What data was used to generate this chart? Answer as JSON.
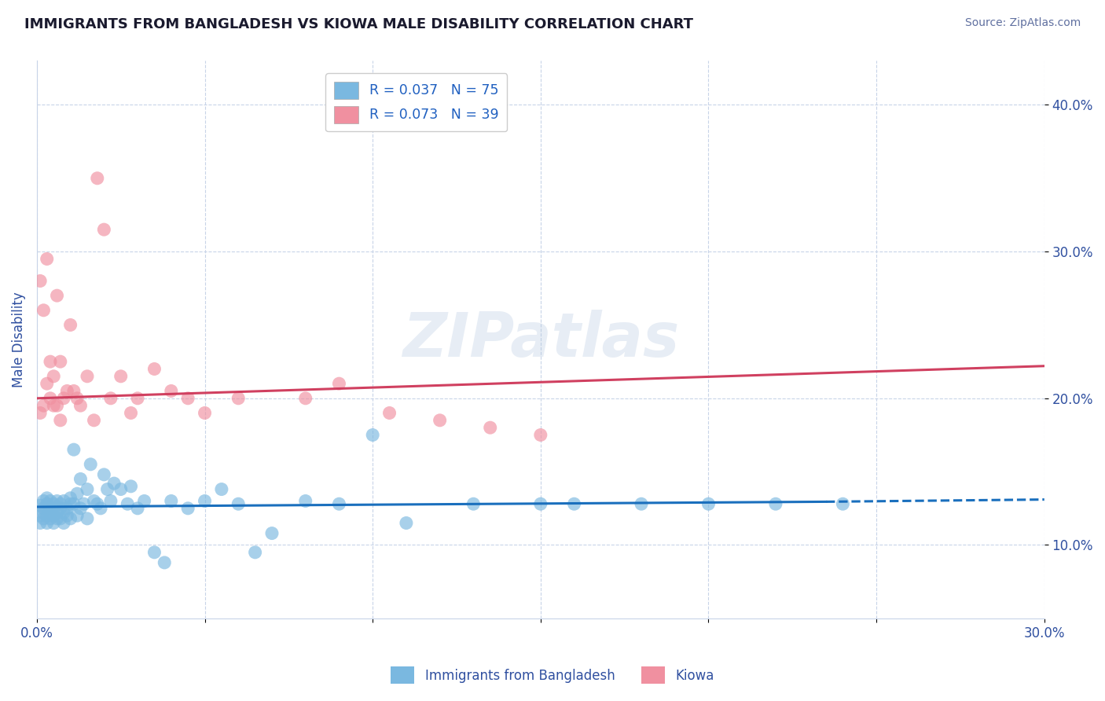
{
  "title": "IMMIGRANTS FROM BANGLADESH VS KIOWA MALE DISABILITY CORRELATION CHART",
  "source": "Source: ZipAtlas.com",
  "ylabel": "Male Disability",
  "xlim": [
    0.0,
    0.3
  ],
  "ylim": [
    0.05,
    0.43
  ],
  "y_ticks": [
    0.1,
    0.2,
    0.3,
    0.4
  ],
  "y_tick_labels": [
    "10.0%",
    "20.0%",
    "30.0%",
    "40.0%"
  ],
  "legend_labels_bottom": [
    "Immigrants from Bangladesh",
    "Kiowa"
  ],
  "watermark": "ZIPatlas",
  "blue_scatter_x": [
    0.001,
    0.001,
    0.001,
    0.002,
    0.002,
    0.002,
    0.002,
    0.003,
    0.003,
    0.003,
    0.003,
    0.004,
    0.004,
    0.004,
    0.004,
    0.005,
    0.005,
    0.005,
    0.005,
    0.006,
    0.006,
    0.006,
    0.007,
    0.007,
    0.007,
    0.008,
    0.008,
    0.008,
    0.009,
    0.009,
    0.01,
    0.01,
    0.01,
    0.011,
    0.011,
    0.012,
    0.012,
    0.013,
    0.013,
    0.014,
    0.015,
    0.015,
    0.016,
    0.017,
    0.018,
    0.019,
    0.02,
    0.021,
    0.022,
    0.023,
    0.025,
    0.027,
    0.028,
    0.03,
    0.032,
    0.035,
    0.038,
    0.04,
    0.045,
    0.05,
    0.055,
    0.06,
    0.065,
    0.07,
    0.08,
    0.09,
    0.1,
    0.11,
    0.13,
    0.15,
    0.16,
    0.18,
    0.2,
    0.22,
    0.24
  ],
  "blue_scatter_y": [
    0.127,
    0.12,
    0.115,
    0.125,
    0.118,
    0.122,
    0.13,
    0.128,
    0.115,
    0.12,
    0.132,
    0.125,
    0.118,
    0.122,
    0.13,
    0.128,
    0.115,
    0.12,
    0.125,
    0.118,
    0.13,
    0.122,
    0.125,
    0.128,
    0.118,
    0.122,
    0.13,
    0.115,
    0.125,
    0.12,
    0.128,
    0.132,
    0.118,
    0.165,
    0.128,
    0.135,
    0.12,
    0.145,
    0.125,
    0.128,
    0.138,
    0.118,
    0.155,
    0.13,
    0.128,
    0.125,
    0.148,
    0.138,
    0.13,
    0.142,
    0.138,
    0.128,
    0.14,
    0.125,
    0.13,
    0.095,
    0.088,
    0.13,
    0.125,
    0.13,
    0.138,
    0.128,
    0.095,
    0.108,
    0.13,
    0.128,
    0.175,
    0.115,
    0.128,
    0.128,
    0.128,
    0.128,
    0.128,
    0.128,
    0.128
  ],
  "pink_scatter_x": [
    0.001,
    0.001,
    0.002,
    0.002,
    0.003,
    0.003,
    0.004,
    0.004,
    0.005,
    0.005,
    0.006,
    0.006,
    0.007,
    0.007,
    0.008,
    0.009,
    0.01,
    0.011,
    0.012,
    0.013,
    0.015,
    0.017,
    0.018,
    0.02,
    0.022,
    0.025,
    0.028,
    0.03,
    0.035,
    0.04,
    0.045,
    0.05,
    0.06,
    0.08,
    0.09,
    0.105,
    0.12,
    0.135,
    0.15
  ],
  "pink_scatter_y": [
    0.19,
    0.28,
    0.26,
    0.195,
    0.295,
    0.21,
    0.2,
    0.225,
    0.215,
    0.195,
    0.27,
    0.195,
    0.185,
    0.225,
    0.2,
    0.205,
    0.25,
    0.205,
    0.2,
    0.195,
    0.215,
    0.185,
    0.35,
    0.315,
    0.2,
    0.215,
    0.19,
    0.2,
    0.22,
    0.205,
    0.2,
    0.19,
    0.2,
    0.2,
    0.21,
    0.19,
    0.185,
    0.18,
    0.175
  ],
  "blue_scatter_color": "#7ab8e0",
  "pink_scatter_color": "#f090a0",
  "blue_line_color": "#1a6fbd",
  "pink_line_color": "#d04060",
  "blue_line_x0": 0.0,
  "blue_line_x1": 0.235,
  "blue_line_x2": 0.3,
  "blue_line_y0": 0.126,
  "blue_line_y1": 0.1295,
  "blue_line_y2": 0.131,
  "pink_line_x0": 0.0,
  "pink_line_x1": 0.3,
  "pink_line_y0": 0.2,
  "pink_line_y1": 0.222,
  "background_color": "#ffffff",
  "grid_color": "#c8d4e8",
  "title_color": "#1a1a2e",
  "axis_label_color": "#3050a0",
  "tick_label_color": "#3050a0",
  "legend_r_color": "#2060c0",
  "legend_n_color": "#e05050"
}
